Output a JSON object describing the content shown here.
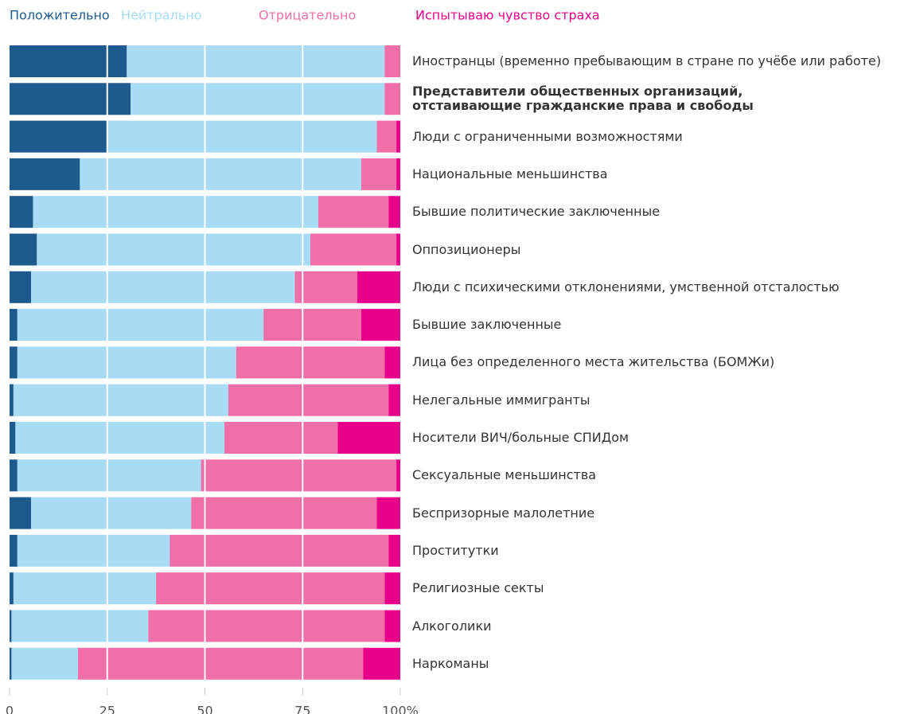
{
  "chart_data": {
    "type": "stacked_barh",
    "categories": [
      "Иностранцы (временно пребывающим в стране по учёбе или работе)",
      "Представители общественных организаций,\nотстаивающие гражданские права и свободы",
      "Люди с ограниченными возможностями",
      "Национальные меньшинства",
      "Бывшие политические заключенные",
      "Оппозиционеры",
      "Люди с психическими отклонениями, умственной отсталостью",
      "Бывшие заключенные",
      "Лица без определенного места жительства (БОМЖи)",
      "Нелегальные иммигранты",
      "Носители ВИЧ/больные СПИДом",
      "Сексуальные меньшинства",
      "Беспризорные малолетние",
      "Проститутки",
      "Религиозные секты",
      "Алкоголики",
      "Наркоманы"
    ],
    "series": [
      {
        "name": "Положительно",
        "color": "#1f5a8e",
        "values": [
          30,
          31,
          25,
          18,
          6,
          7,
          5.5,
          2,
          2,
          1,
          1.5,
          2,
          5.5,
          2,
          1,
          0.5,
          0.5
        ]
      },
      {
        "name": "Нейтрально",
        "color": "#a8dcf5",
        "values": [
          66,
          65,
          69,
          72,
          73,
          70,
          67.5,
          63,
          56,
          55,
          53.5,
          47,
          41,
          39,
          36.5,
          35,
          17
        ]
      },
      {
        "name": "Отрицательно",
        "color": "#f06fa8",
        "values": [
          4,
          4,
          5,
          9,
          18,
          22,
          16,
          25,
          38,
          41,
          29,
          50,
          47.5,
          56,
          58.5,
          60.5,
          73
        ]
      },
      {
        "name": "Испытываю чувство страха",
        "color": "#e8008a",
        "values": [
          0,
          0,
          1,
          1,
          3,
          1,
          11,
          10,
          4,
          3,
          16,
          1,
          6,
          3,
          4,
          4,
          9.5
        ]
      }
    ],
    "highlight_index": 1,
    "xlim": [
      0,
      100
    ],
    "xticks": [
      0,
      25,
      50,
      75,
      {
        "value": 100,
        "label": "100%"
      }
    ],
    "grid": true,
    "legend": "top"
  }
}
